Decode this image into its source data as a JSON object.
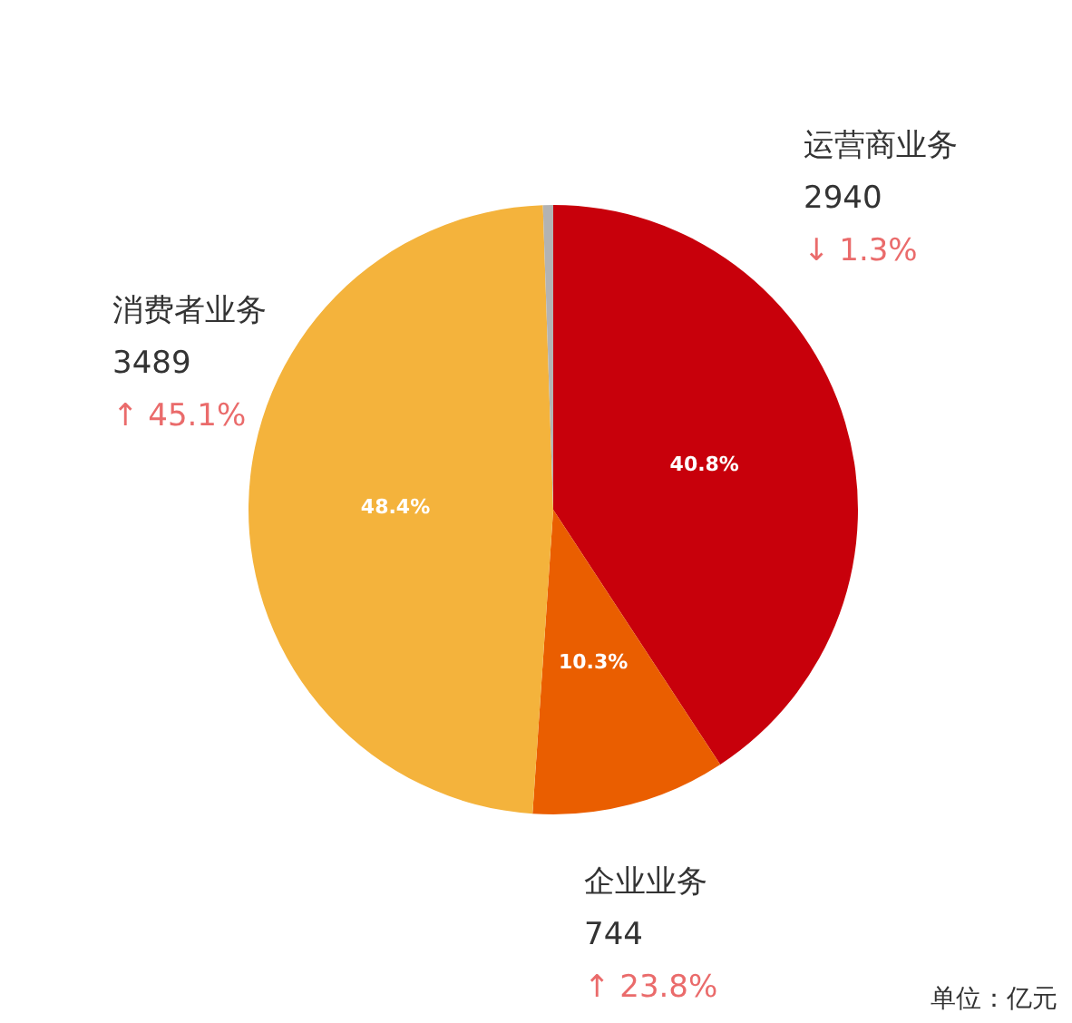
{
  "chart_data": {
    "type": "pie",
    "categories": [
      "运营商业务",
      "企业业务",
      "消费者业务",
      null
    ],
    "values": [
      2940,
      744,
      3489,
      39
    ],
    "colors": [
      "#c8000b",
      "#ea5e00",
      "#f4b33c",
      "#b3b3b3"
    ],
    "value_labels": [
      "2940",
      "744",
      "3489",
      null
    ],
    "annotations": [
      {
        "text": "40.8%",
        "x": "运营商业务"
      },
      {
        "text": "10.3%",
        "x": "企业业务"
      },
      {
        "text": "48.4%",
        "x": "消费者业务"
      },
      {
        "text": "↓ 1.3%",
        "x": "运营商业务"
      },
      {
        "text": "↑ 23.8%",
        "x": "企业业务"
      },
      {
        "text": "↑ 45.1%",
        "x": "消费者业务"
      },
      "单位：亿元"
    ]
  }
}
